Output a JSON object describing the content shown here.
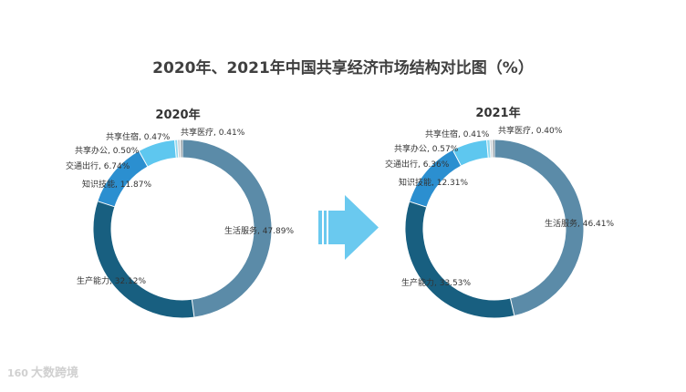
{
  "title": "2020年、2021年中国共享经济市场结构对比图（%）",
  "watermark": {
    "logo": "160",
    "text": "大数跨境"
  },
  "colors": {
    "生活服务": "#5b8ba8",
    "生产能力": "#185f80",
    "知识技能": "#2b8fd0",
    "交通出行": "#5ec7ef",
    "共享办公": "#8fd8ef",
    "共享住宿": "#c8cfd4",
    "共享医疗": "#a9b1b6",
    "arrow": "#6ac9ef"
  },
  "chart_data": [
    {
      "type": "pie",
      "title": "2020年",
      "labels": [
        "生活服务",
        "生产能力",
        "知识技能",
        "交通出行",
        "共享办公",
        "共享住宿",
        "共享医疗"
      ],
      "values": [
        47.89,
        32.12,
        11.87,
        6.74,
        0.5,
        0.47,
        0.41
      ],
      "label_text": [
        "生活服务, 47.89%",
        "生产能力, 32.12%",
        "知识技能, 11.87%",
        "交通出行, 6.74%",
        "共享办公, 0.50%",
        "共享住宿, 0.47%",
        "共享医疗, 0.41%"
      ]
    },
    {
      "type": "pie",
      "title": "2021年",
      "labels": [
        "生活服务",
        "生产能力",
        "知识技能",
        "交通出行",
        "共享办公",
        "共享住宿",
        "共享医疗"
      ],
      "values": [
        46.41,
        33.53,
        12.31,
        6.36,
        0.57,
        0.41,
        0.4
      ],
      "label_text": [
        "生活服务, 46.41%",
        "生产能力, 33.53%",
        "知识技能, 12.31%",
        "交通出行, 6.36%",
        "共享办公, 0.57%",
        "共享住宿, 0.41%",
        "共享医疗, 0.40%"
      ]
    }
  ]
}
